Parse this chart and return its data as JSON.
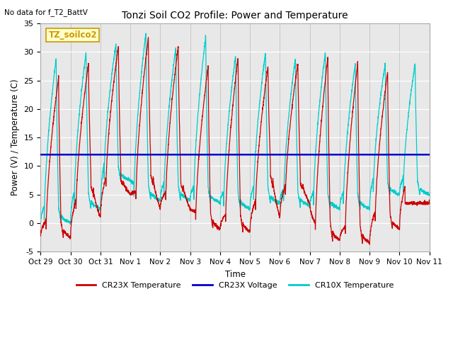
{
  "title": "Tonzi Soil CO2 Profile: Power and Temperature",
  "subtitle": "No data for f_T2_BattV",
  "ylabel": "Power (V) / Temperature (C)",
  "xlabel": "Time",
  "ylim": [
    -5,
    35
  ],
  "yticks": [
    -5,
    0,
    5,
    10,
    15,
    20,
    25,
    30,
    35
  ],
  "x_tick_labels": [
    "Oct 29",
    "Oct 30",
    "Oct 31",
    "Nov 1",
    "Nov 2",
    "Nov 3",
    "Nov 4",
    "Nov 5",
    "Nov 6",
    "Nov 7",
    "Nov 8",
    "Nov 9",
    "Nov 10",
    "Nov 11"
  ],
  "legend_text": "TZ_soilco2",
  "legend_text_color": "#cc9900",
  "legend_bg_color": "#ffffcc",
  "legend_border_color": "#cc9900",
  "plot_bg_color": "#e8e8e8",
  "cr23x_temp_color": "#cc0000",
  "cr23x_volt_color": "#0000cc",
  "cr10x_temp_color": "#00cccc",
  "voltage_value": 12.0,
  "num_days": 13,
  "cr23x_peaks": [
    25.5,
    28.0,
    31.0,
    32.5,
    31.0,
    27.5,
    29.0,
    27.5,
    28.0,
    29.0,
    28.0,
    26.5,
    3.5
  ],
  "cr23x_mins": [
    -2.5,
    1.0,
    5.0,
    2.5,
    2.5,
    -1.0,
    -1.5,
    1.0,
    3.5,
    -3.0,
    -3.5,
    -1.0,
    3.5
  ],
  "cr23x_bumps": [
    0,
    6.5,
    7.5,
    8.5,
    7.0,
    0,
    0,
    8.5,
    7.0,
    0,
    0,
    0,
    0
  ],
  "cr10x_peaks": [
    29.0,
    30.0,
    31.5,
    33.5,
    30.8,
    32.8,
    29.5,
    30.0,
    29.0,
    30.0,
    28.0,
    28.0,
    28.0
  ],
  "cr10x_mins": [
    0.0,
    2.5,
    7.5,
    4.0,
    4.0,
    3.5,
    2.5,
    3.5,
    3.0,
    2.5,
    2.5,
    5.0,
    5.0
  ],
  "peak_hour": 14,
  "trough_hour": 4,
  "bump_hour": 9,
  "hours_per_day": 24,
  "n_samples_per_day": 240
}
